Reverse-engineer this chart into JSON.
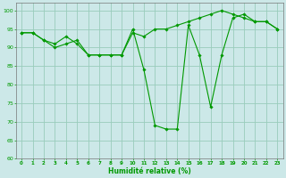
{
  "xlabel": "Humidité relative (%)",
  "bg_color": "#cce8e8",
  "grid_color": "#99ccbb",
  "line_color": "#009900",
  "ylim": [
    60,
    102
  ],
  "xlim": [
    -0.5,
    23.5
  ],
  "yticks": [
    60,
    65,
    70,
    75,
    80,
    85,
    90,
    95,
    100
  ],
  "xticks": [
    0,
    1,
    2,
    3,
    4,
    5,
    6,
    7,
    8,
    9,
    10,
    11,
    12,
    13,
    14,
    15,
    16,
    17,
    18,
    19,
    20,
    21,
    22,
    23
  ],
  "series1_x": [
    0,
    1,
    2,
    3,
    4,
    5,
    6,
    7,
    8,
    9,
    10,
    11,
    12,
    13,
    14,
    15,
    16,
    17,
    18,
    19,
    20,
    21,
    22,
    23
  ],
  "series1_y": [
    94,
    94,
    92,
    90,
    91,
    92,
    88,
    88,
    88,
    88,
    95,
    84,
    69,
    68,
    68,
    96,
    88,
    74,
    88,
    98,
    99,
    97,
    97,
    95
  ],
  "series2_x": [
    0,
    1,
    2,
    3,
    4,
    5,
    6,
    7,
    8,
    9,
    10,
    11,
    12,
    13,
    14,
    15,
    16,
    17,
    18,
    19,
    20,
    21,
    22,
    23
  ],
  "series2_y": [
    94,
    94,
    92,
    91,
    93,
    91,
    88,
    88,
    88,
    88,
    94,
    93,
    95,
    95,
    96,
    97,
    98,
    99,
    100,
    99,
    98,
    97,
    97,
    95
  ]
}
